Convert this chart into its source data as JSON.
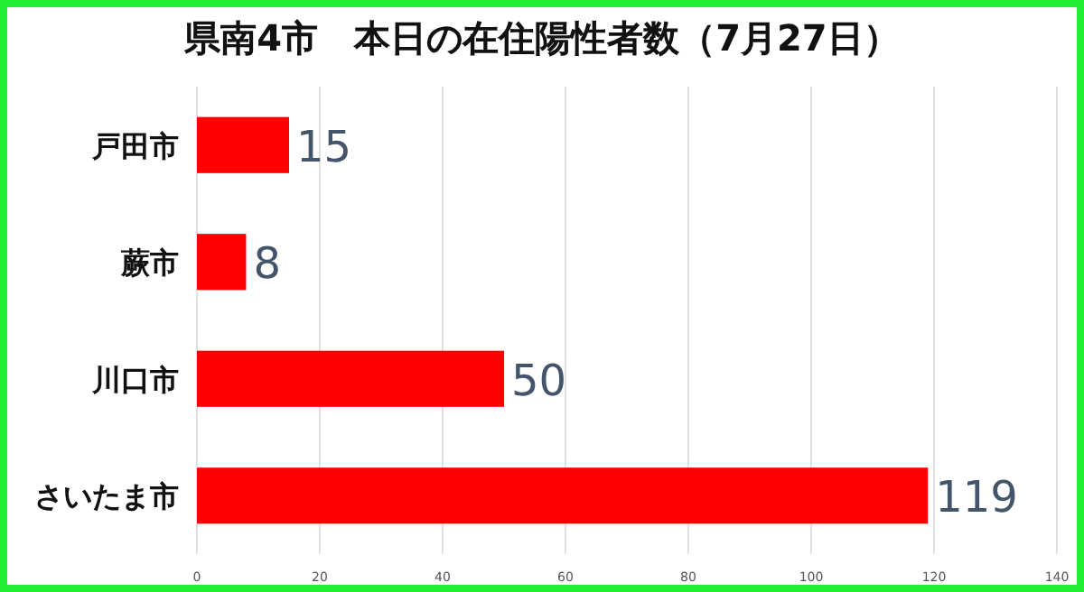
{
  "chart_data": {
    "type": "bar",
    "orientation": "horizontal",
    "title": "県南4市　本日の在住陽性者数（7月27日）",
    "categories": [
      "戸田市",
      "蕨市",
      "川口市",
      "さいたま市"
    ],
    "values": [
      15,
      8,
      50,
      119
    ],
    "color": "#ff0000",
    "xlim": [
      0,
      140
    ],
    "xticks": [
      0,
      20,
      40,
      60,
      80,
      100,
      120,
      140
    ],
    "grid": "x",
    "data_labels": true
  }
}
